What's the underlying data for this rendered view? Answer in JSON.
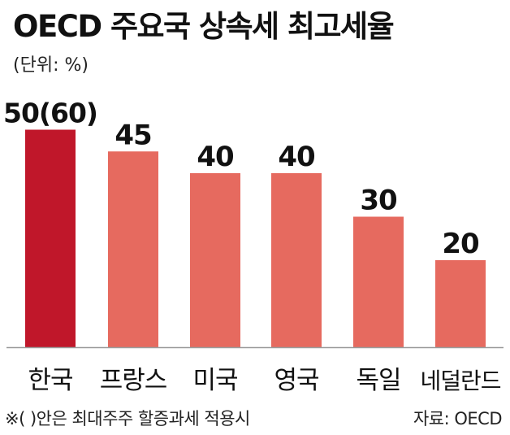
{
  "title": "OECD 주요국 상속세 최고세율",
  "unit_label": "(단위: %)",
  "footnote": "※(  )안은 최대주주 할증과세 적용시",
  "source": "자료: OECD",
  "colors": {
    "highlight": "#c0172a",
    "bar": "#e66a5f",
    "baseline": "#9a9a9a"
  },
  "chart_data": {
    "type": "bar",
    "title": "OECD 주요국 상속세 최고세율",
    "ylabel": "(단위: %)",
    "categories": [
      "한국",
      "프랑스",
      "미국",
      "영국",
      "독일",
      "네덜란드"
    ],
    "values": [
      50,
      45,
      40,
      40,
      30,
      20
    ],
    "value_labels": [
      "50(60)",
      "45",
      "40",
      "40",
      "30",
      "20"
    ],
    "highlight_index": 0,
    "ylim": [
      0,
      60
    ],
    "grid": false,
    "legend": "none"
  }
}
